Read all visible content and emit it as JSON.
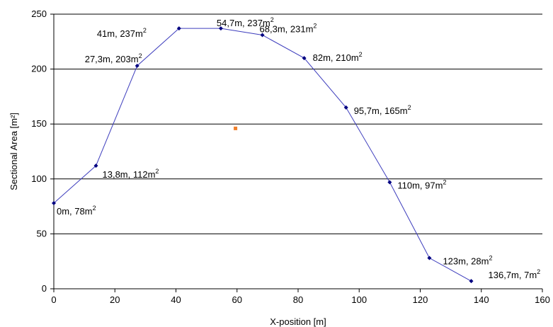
{
  "chart_data": {
    "type": "line",
    "xlabel": "X-position [m]",
    "ylabel": "Sectional Area  [m²]",
    "xlim": [
      0,
      160
    ],
    "ylim": [
      0,
      250
    ],
    "xticks": [
      "0",
      "20",
      "40",
      "60",
      "80",
      "100",
      "120",
      "140",
      "160"
    ],
    "yticks": [
      "0",
      "50",
      "100",
      "150",
      "200",
      "250"
    ],
    "grid": "horizontal",
    "series": [
      {
        "color": "#3d3dbd",
        "marker_color": "#000080",
        "points": [
          {
            "x": 0,
            "y": 78,
            "label": "0m, 78m²"
          },
          {
            "x": 13.8,
            "y": 112,
            "label": "13,8m, 112m²"
          },
          {
            "x": 27.3,
            "y": 203,
            "label": "27,3m, 203m²"
          },
          {
            "x": 41,
            "y": 237,
            "label": "41m, 237m²"
          },
          {
            "x": 54.7,
            "y": 237,
            "label": "54,7m, 237m²"
          },
          {
            "x": 68.3,
            "y": 231,
            "label": "68,3m, 231m²"
          },
          {
            "x": 82,
            "y": 210,
            "label": "82m, 210m²"
          },
          {
            "x": 95.7,
            "y": 165,
            "label": "95,7m, 165m²"
          },
          {
            "x": 110,
            "y": 97,
            "label": "110m, 97m²"
          },
          {
            "x": 123,
            "y": 28,
            "label": "123m, 28m²"
          },
          {
            "x": 136.7,
            "y": 7,
            "label": "136,7m, 7m²"
          }
        ]
      },
      {
        "color": "#f07f2a",
        "points": [
          {
            "x": 59.5,
            "y": 146
          }
        ]
      }
    ]
  }
}
